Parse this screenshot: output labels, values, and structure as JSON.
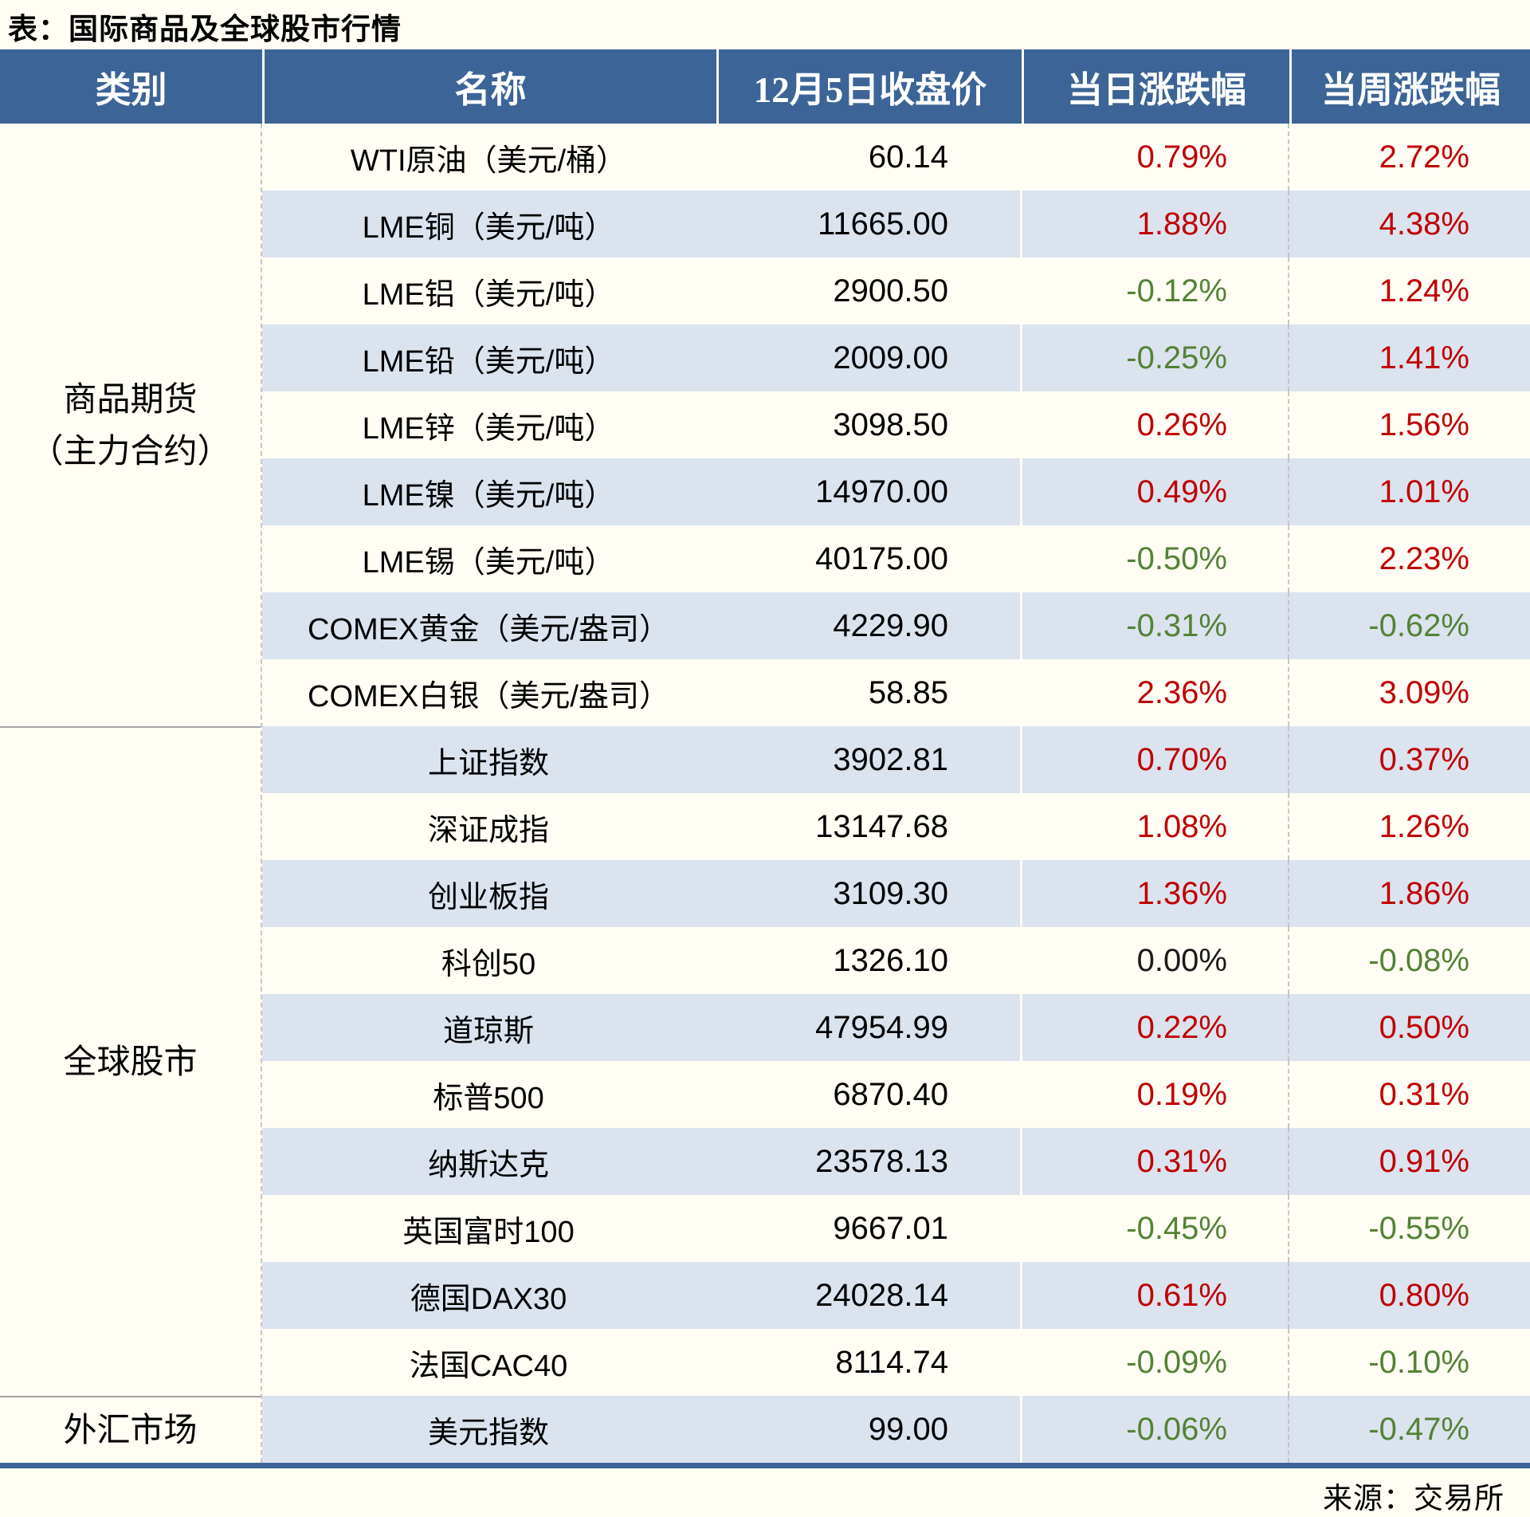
{
  "title": "表：国际商品及全球股市行情",
  "source_note": "来源：交易所",
  "colors": {
    "up": "#c00000",
    "down": "#548235",
    "flat": "#1a1a1a",
    "header_bg": "#3c6496",
    "stripe_row_bg": "#dbe3ef",
    "plain_row_bg": "#fffdf4"
  },
  "chart_data": {
    "type": "table",
    "columns": [
      "类别",
      "名称",
      "12月5日收盘价",
      "当日涨跌幅",
      "当周涨跌幅"
    ],
    "sections": [
      {
        "category": "商品期货（主力合约）",
        "category_lines": [
          "商品期货",
          "（主力合约）"
        ],
        "rows": [
          {
            "name": "WTI原油（美元/桶）",
            "close": "60.14",
            "day": "0.79%",
            "day_dir": "up",
            "week": "2.72%",
            "week_dir": "up"
          },
          {
            "name": "LME铜（美元/吨）",
            "close": "11665.00",
            "day": "1.88%",
            "day_dir": "up",
            "week": "4.38%",
            "week_dir": "up"
          },
          {
            "name": "LME铝（美元/吨）",
            "close": "2900.50",
            "day": "-0.12%",
            "day_dir": "down",
            "week": "1.24%",
            "week_dir": "up"
          },
          {
            "name": "LME铅（美元/吨）",
            "close": "2009.00",
            "day": "-0.25%",
            "day_dir": "down",
            "week": "1.41%",
            "week_dir": "up"
          },
          {
            "name": "LME锌（美元/吨）",
            "close": "3098.50",
            "day": "0.26%",
            "day_dir": "up",
            "week": "1.56%",
            "week_dir": "up"
          },
          {
            "name": "LME镍（美元/吨）",
            "close": "14970.00",
            "day": "0.49%",
            "day_dir": "up",
            "week": "1.01%",
            "week_dir": "up"
          },
          {
            "name": "LME锡（美元/吨）",
            "close": "40175.00",
            "day": "-0.50%",
            "day_dir": "down",
            "week": "2.23%",
            "week_dir": "up"
          },
          {
            "name": "COMEX黄金（美元/盎司）",
            "close": "4229.90",
            "day": "-0.31%",
            "day_dir": "down",
            "week": "-0.62%",
            "week_dir": "down"
          },
          {
            "name": "COMEX白银（美元/盎司）",
            "close": "58.85",
            "day": "2.36%",
            "day_dir": "up",
            "week": "3.09%",
            "week_dir": "up"
          }
        ]
      },
      {
        "category": "全球股市",
        "category_lines": [
          "全球股市"
        ],
        "rows": [
          {
            "name": "上证指数",
            "close": "3902.81",
            "day": "0.70%",
            "day_dir": "up",
            "week": "0.37%",
            "week_dir": "up"
          },
          {
            "name": "深证成指",
            "close": "13147.68",
            "day": "1.08%",
            "day_dir": "up",
            "week": "1.26%",
            "week_dir": "up"
          },
          {
            "name": "创业板指",
            "close": "3109.30",
            "day": "1.36%",
            "day_dir": "up",
            "week": "1.86%",
            "week_dir": "up"
          },
          {
            "name": "科创50",
            "close": "1326.10",
            "day": "0.00%",
            "day_dir": "flat",
            "week": "-0.08%",
            "week_dir": "down"
          },
          {
            "name": "道琼斯",
            "close": "47954.99",
            "day": "0.22%",
            "day_dir": "up",
            "week": "0.50%",
            "week_dir": "up"
          },
          {
            "name": "标普500",
            "close": "6870.40",
            "day": "0.19%",
            "day_dir": "up",
            "week": "0.31%",
            "week_dir": "up"
          },
          {
            "name": "纳斯达克",
            "close": "23578.13",
            "day": "0.31%",
            "day_dir": "up",
            "week": "0.91%",
            "week_dir": "up"
          },
          {
            "name": "英国富时100",
            "close": "9667.01",
            "day": "-0.45%",
            "day_dir": "down",
            "week": "-0.55%",
            "week_dir": "down"
          },
          {
            "name": "德国DAX30",
            "close": "24028.14",
            "day": "0.61%",
            "day_dir": "up",
            "week": "0.80%",
            "week_dir": "up"
          },
          {
            "name": "法国CAC40",
            "close": "8114.74",
            "day": "-0.09%",
            "day_dir": "down",
            "week": "-0.10%",
            "week_dir": "down"
          }
        ]
      },
      {
        "category": "外汇市场",
        "category_lines": [
          "外汇市场"
        ],
        "rows": [
          {
            "name": "美元指数",
            "close": "99.00",
            "day": "-0.06%",
            "day_dir": "down",
            "week": "-0.47%",
            "week_dir": "down"
          }
        ]
      }
    ]
  }
}
